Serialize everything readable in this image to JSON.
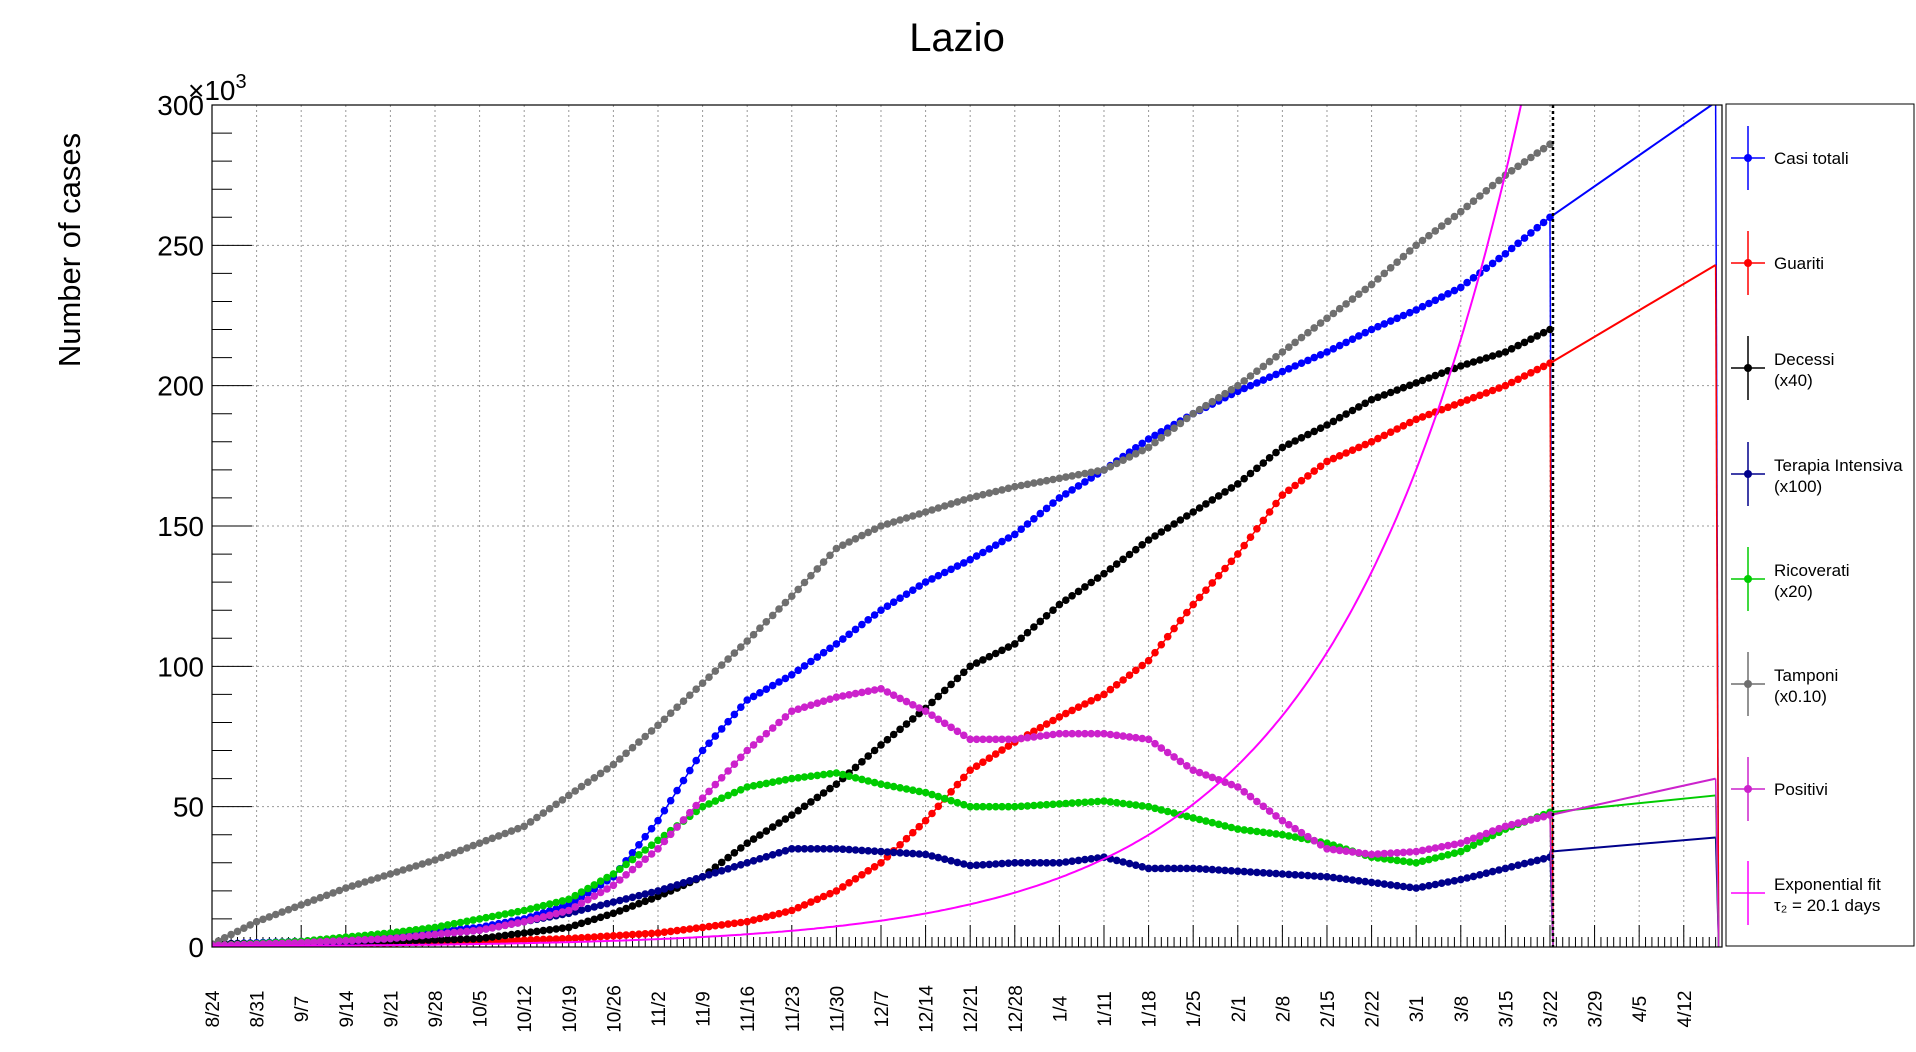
{
  "chart_data": {
    "type": "line",
    "title": "Lazio",
    "ylabel": "Number of cases",
    "y_multiplier_label": "×10",
    "y_multiplier_exp": "3",
    "ylim": [
      0,
      300
    ],
    "yticks": [
      0,
      50,
      100,
      150,
      200,
      250,
      300
    ],
    "xlim_days": [
      0,
      237
    ],
    "grid": true,
    "legend_placement": "right",
    "x_ticks": [
      {
        "day": 0,
        "label": "8/24"
      },
      {
        "day": 7,
        "label": "8/31"
      },
      {
        "day": 14,
        "label": "9/7"
      },
      {
        "day": 21,
        "label": "9/14"
      },
      {
        "day": 28,
        "label": "9/21"
      },
      {
        "day": 35,
        "label": "9/28"
      },
      {
        "day": 42,
        "label": "10/5"
      },
      {
        "day": 49,
        "label": "10/12"
      },
      {
        "day": 56,
        "label": "10/19"
      },
      {
        "day": 63,
        "label": "10/26"
      },
      {
        "day": 70,
        "label": "11/2"
      },
      {
        "day": 77,
        "label": "11/9"
      },
      {
        "day": 84,
        "label": "11/16"
      },
      {
        "day": 91,
        "label": "11/23"
      },
      {
        "day": 98,
        "label": "11/30"
      },
      {
        "day": 105,
        "label": "12/7"
      },
      {
        "day": 112,
        "label": "12/14"
      },
      {
        "day": 119,
        "label": "12/21"
      },
      {
        "day": 126,
        "label": "12/28"
      },
      {
        "day": 133,
        "label": "1/4"
      },
      {
        "day": 140,
        "label": "1/11"
      },
      {
        "day": 147,
        "label": "1/18"
      },
      {
        "day": 154,
        "label": "1/25"
      },
      {
        "day": 161,
        "label": "2/1"
      },
      {
        "day": 168,
        "label": "2/8"
      },
      {
        "day": 175,
        "label": "2/15"
      },
      {
        "day": 182,
        "label": "2/22"
      },
      {
        "day": 189,
        "label": "3/1"
      },
      {
        "day": 196,
        "label": "3/8"
      },
      {
        "day": 203,
        "label": "3/15"
      },
      {
        "day": 210,
        "label": "3/22"
      },
      {
        "day": 217,
        "label": "3/29"
      },
      {
        "day": 224,
        "label": "4/5"
      },
      {
        "day": 231,
        "label": "4/12"
      }
    ],
    "last_data_day": 210,
    "projection_end_day": 236,
    "series": [
      {
        "name": "Casi totali",
        "color": "#0000ff",
        "points": [
          [
            0,
            1
          ],
          [
            14,
            2
          ],
          [
            28,
            4
          ],
          [
            42,
            7
          ],
          [
            49,
            10
          ],
          [
            56,
            15
          ],
          [
            63,
            25
          ],
          [
            70,
            45
          ],
          [
            77,
            70
          ],
          [
            84,
            88
          ],
          [
            91,
            97
          ],
          [
            98,
            108
          ],
          [
            105,
            120
          ],
          [
            112,
            130
          ],
          [
            119,
            138
          ],
          [
            126,
            147
          ],
          [
            133,
            160
          ],
          [
            140,
            170
          ],
          [
            147,
            181
          ],
          [
            154,
            190
          ],
          [
            161,
            198
          ],
          [
            168,
            205
          ],
          [
            175,
            212
          ],
          [
            182,
            220
          ],
          [
            189,
            227
          ],
          [
            196,
            235
          ],
          [
            203,
            247
          ],
          [
            210,
            260
          ]
        ],
        "projection": [
          [
            210,
            260
          ],
          [
            236,
            301
          ]
        ]
      },
      {
        "name": "Guariti",
        "color": "#ff0000",
        "points": [
          [
            0,
            0.5
          ],
          [
            14,
            1
          ],
          [
            28,
            1.5
          ],
          [
            42,
            2
          ],
          [
            56,
            3
          ],
          [
            70,
            5
          ],
          [
            84,
            9
          ],
          [
            91,
            13
          ],
          [
            98,
            20
          ],
          [
            105,
            30
          ],
          [
            112,
            45
          ],
          [
            119,
            63
          ],
          [
            126,
            73
          ],
          [
            133,
            82
          ],
          [
            140,
            90
          ],
          [
            147,
            102
          ],
          [
            154,
            122
          ],
          [
            161,
            140
          ],
          [
            168,
            161
          ],
          [
            175,
            173
          ],
          [
            182,
            180
          ],
          [
            189,
            188
          ],
          [
            196,
            194
          ],
          [
            203,
            200
          ],
          [
            210,
            208
          ]
        ],
        "projection": [
          [
            210,
            208
          ],
          [
            236,
            243
          ]
        ]
      },
      {
        "name": "Decessi",
        "name2": "(x40)",
        "color": "#000000",
        "points": [
          [
            0,
            1
          ],
          [
            14,
            1.5
          ],
          [
            28,
            2
          ],
          [
            42,
            3
          ],
          [
            56,
            7
          ],
          [
            63,
            12
          ],
          [
            70,
            18
          ],
          [
            77,
            25
          ],
          [
            84,
            37
          ],
          [
            91,
            47
          ],
          [
            98,
            58
          ],
          [
            105,
            72
          ],
          [
            112,
            85
          ],
          [
            119,
            100
          ],
          [
            126,
            108
          ],
          [
            133,
            122
          ],
          [
            140,
            133
          ],
          [
            147,
            145
          ],
          [
            154,
            155
          ],
          [
            161,
            165
          ],
          [
            168,
            178
          ],
          [
            175,
            186
          ],
          [
            182,
            195
          ],
          [
            189,
            201
          ],
          [
            196,
            207
          ],
          [
            203,
            212
          ],
          [
            210,
            220
          ]
        ]
      },
      {
        "name": "Terapia Intensiva",
        "name2": "(x100)",
        "color": "#00008b",
        "points": [
          [
            0,
            0.5
          ],
          [
            14,
            1
          ],
          [
            28,
            3
          ],
          [
            42,
            6
          ],
          [
            56,
            12
          ],
          [
            63,
            16
          ],
          [
            70,
            20
          ],
          [
            77,
            25
          ],
          [
            84,
            30
          ],
          [
            91,
            35
          ],
          [
            98,
            35
          ],
          [
            105,
            34
          ],
          [
            112,
            33
          ],
          [
            119,
            29
          ],
          [
            126,
            30
          ],
          [
            133,
            30
          ],
          [
            140,
            32
          ],
          [
            147,
            28
          ],
          [
            154,
            28
          ],
          [
            161,
            27
          ],
          [
            168,
            26
          ],
          [
            175,
            25
          ],
          [
            182,
            23
          ],
          [
            189,
            21
          ],
          [
            196,
            24
          ],
          [
            203,
            28
          ],
          [
            210,
            32
          ]
        ],
        "projection": [
          [
            210,
            34
          ],
          [
            236,
            39
          ]
        ]
      },
      {
        "name": "Ricoverati",
        "name2": "(x20)",
        "color": "#00cc00",
        "points": [
          [
            0,
            0.5
          ],
          [
            14,
            2
          ],
          [
            28,
            5
          ],
          [
            35,
            7
          ],
          [
            42,
            10
          ],
          [
            49,
            13
          ],
          [
            56,
            17
          ],
          [
            63,
            26
          ],
          [
            70,
            38
          ],
          [
            77,
            50
          ],
          [
            84,
            57
          ],
          [
            91,
            60
          ],
          [
            98,
            62
          ],
          [
            105,
            58
          ],
          [
            112,
            55
          ],
          [
            119,
            50
          ],
          [
            126,
            50
          ],
          [
            133,
            51
          ],
          [
            140,
            52
          ],
          [
            147,
            50
          ],
          [
            154,
            46
          ],
          [
            161,
            42
          ],
          [
            168,
            40
          ],
          [
            175,
            37
          ],
          [
            182,
            32
          ],
          [
            189,
            30
          ],
          [
            196,
            34
          ],
          [
            203,
            42
          ],
          [
            210,
            48
          ]
        ],
        "projection": [
          [
            210,
            48
          ],
          [
            236,
            54
          ]
        ]
      },
      {
        "name": "Tamponi",
        "name2": "(x0.10)",
        "color": "#6f6f6f",
        "points": [
          [
            0,
            1
          ],
          [
            7,
            9
          ],
          [
            14,
            15
          ],
          [
            21,
            21
          ],
          [
            28,
            26
          ],
          [
            35,
            31
          ],
          [
            42,
            37
          ],
          [
            49,
            43
          ],
          [
            56,
            54
          ],
          [
            63,
            65
          ],
          [
            70,
            79
          ],
          [
            77,
            94
          ],
          [
            84,
            109
          ],
          [
            91,
            125
          ],
          [
            98,
            142
          ],
          [
            105,
            150
          ],
          [
            112,
            155
          ],
          [
            119,
            160
          ],
          [
            126,
            164
          ],
          [
            133,
            167
          ],
          [
            140,
            170
          ],
          [
            147,
            178
          ],
          [
            154,
            190
          ],
          [
            161,
            200
          ],
          [
            168,
            212
          ],
          [
            175,
            224
          ],
          [
            182,
            236
          ],
          [
            189,
            250
          ],
          [
            196,
            262
          ],
          [
            203,
            275
          ],
          [
            210,
            286
          ]
        ]
      },
      {
        "name": "Positivi",
        "color": "#cc22cc",
        "points": [
          [
            0,
            0.5
          ],
          [
            14,
            1.5
          ],
          [
            28,
            3
          ],
          [
            42,
            6
          ],
          [
            49,
            9
          ],
          [
            56,
            13
          ],
          [
            63,
            22
          ],
          [
            70,
            35
          ],
          [
            77,
            53
          ],
          [
            84,
            70
          ],
          [
            91,
            84
          ],
          [
            98,
            89
          ],
          [
            105,
            92
          ],
          [
            112,
            84
          ],
          [
            119,
            74
          ],
          [
            126,
            74
          ],
          [
            133,
            76
          ],
          [
            140,
            76
          ],
          [
            147,
            74
          ],
          [
            154,
            63
          ],
          [
            161,
            57
          ],
          [
            168,
            45
          ],
          [
            175,
            35
          ],
          [
            182,
            33
          ],
          [
            189,
            34
          ],
          [
            196,
            37
          ],
          [
            203,
            43
          ],
          [
            210,
            47
          ]
        ],
        "projection": [
          [
            210,
            47
          ],
          [
            236,
            60
          ]
        ]
      },
      {
        "name": "Exponential fit",
        "name2": "τ₂ = 20.1 days",
        "color": "#ff00ff",
        "fit": {
          "a": 0.9,
          "tau2": 20.1,
          "day_offset": 37
        }
      }
    ]
  }
}
